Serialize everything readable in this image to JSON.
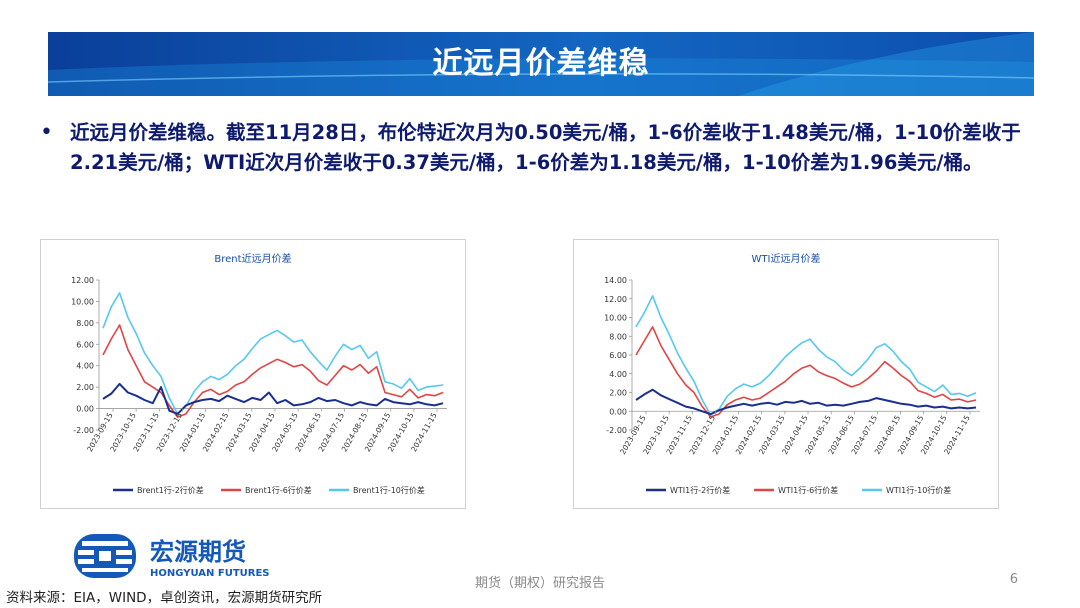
{
  "slide": {
    "title": "近远月价差维稳",
    "bullet": "近远月价差维稳。截至11月28日，布伦特近次月为0.50美元/桶，1-6价差收于1.48美元/桶，1-10价差收于2.21美元/桶；WTI近次月价差收于0.37美元/桶，1-6价差为1.18美元/桶，1-10价差为1.96美元/桶。",
    "footer_center": "期货（期权）研究报告",
    "page_number": "6",
    "source": "资料来源：EIA，WIND，卓创资讯，宏源期货研究所",
    "logo": {
      "cn": "宏源期货",
      "en": "HONGYUAN FUTURES"
    },
    "colors": {
      "banner_dark": "#0b4aa8",
      "banner_light": "#1c8fe0",
      "text_navy": "#0d1a6e"
    }
  },
  "chart_data": [
    {
      "type": "line",
      "title": "Brent近远月价差",
      "ylim": [
        -2,
        12
      ],
      "yticks": [
        "-2.00",
        "0.00",
        "2.00",
        "4.00",
        "6.00",
        "8.00",
        "10.00",
        "12.00"
      ],
      "xticks": [
        "2023-09-15",
        "2023-10-15",
        "2023-11-15",
        "2023-12-15",
        "2024-01-15",
        "2024-02-15",
        "2024-03-15",
        "2024-04-15",
        "2024-05-15",
        "2024-06-15",
        "2024-07-15",
        "2024-08-15",
        "2024-09-15",
        "2024-10-15",
        "2024-11-15"
      ],
      "series": [
        {
          "name": "Brent1行-2行价差",
          "color": "#1a2f8f",
          "values": [
            0.9,
            1.4,
            2.3,
            1.5,
            1.2,
            0.8,
            0.5,
            2.0,
            -0.2,
            -0.5,
            0.3,
            0.6,
            0.8,
            0.9,
            0.7,
            1.2,
            0.9,
            0.6,
            1.0,
            0.8,
            1.5,
            0.5,
            0.8,
            0.3,
            0.4,
            0.6,
            1.0,
            0.7,
            0.8,
            0.5,
            0.3,
            0.6,
            0.4,
            0.3,
            0.9,
            0.6,
            0.5,
            0.4,
            0.6,
            0.4,
            0.3,
            0.5
          ]
        },
        {
          "name": "Brent1行-6行价差",
          "color": "#e04545",
          "values": [
            5.0,
            6.5,
            7.8,
            5.5,
            4.0,
            2.5,
            2.0,
            1.5,
            0.3,
            -0.8,
            -0.5,
            0.6,
            1.5,
            1.8,
            1.3,
            1.6,
            2.2,
            2.5,
            3.2,
            3.8,
            4.2,
            4.6,
            4.3,
            3.9,
            4.1,
            3.5,
            2.6,
            2.2,
            3.1,
            4.0,
            3.6,
            4.1,
            3.3,
            3.9,
            1.5,
            1.3,
            1.1,
            1.8,
            1.0,
            1.3,
            1.2,
            1.5
          ]
        },
        {
          "name": "Brent1行-10行价差",
          "color": "#55c8f0",
          "values": [
            7.5,
            9.5,
            10.8,
            8.5,
            7.0,
            5.2,
            4.0,
            3.0,
            1.0,
            -0.5,
            0.2,
            1.6,
            2.5,
            3.0,
            2.7,
            3.2,
            4.0,
            4.6,
            5.6,
            6.5,
            6.9,
            7.3,
            6.8,
            6.2,
            6.4,
            5.3,
            4.4,
            3.6,
            4.9,
            6.0,
            5.5,
            5.9,
            4.7,
            5.3,
            2.5,
            2.3,
            1.9,
            2.8,
            1.7,
            2.0,
            2.1,
            2.2
          ]
        }
      ]
    },
    {
      "type": "line",
      "title": "WTI近远月价差",
      "ylim": [
        -2,
        14
      ],
      "yticks": [
        "-2.00",
        "0.00",
        "2.00",
        "4.00",
        "6.00",
        "8.00",
        "10.00",
        "12.00",
        "14.00"
      ],
      "xticks": [
        "2023-09-15",
        "2023-10-15",
        "2023-11-15",
        "2023-12-15",
        "2024-01-15",
        "2024-02-15",
        "2024-03-15",
        "2024-04-15",
        "2024-05-15",
        "2024-06-15",
        "2024-07-15",
        "2024-08-15",
        "2024-09-15",
        "2024-10-15",
        "2024-11-15"
      ],
      "series": [
        {
          "name": "WTI1行-2行价差",
          "color": "#1a2f8f",
          "values": [
            1.2,
            1.8,
            2.3,
            1.7,
            1.3,
            0.9,
            0.5,
            0.3,
            0.0,
            -0.3,
            0.1,
            0.4,
            0.6,
            0.8,
            0.6,
            0.8,
            0.9,
            0.7,
            1.0,
            0.9,
            1.1,
            0.8,
            0.9,
            0.6,
            0.7,
            0.6,
            0.8,
            1.0,
            1.1,
            1.4,
            1.2,
            1.0,
            0.8,
            0.7,
            0.5,
            0.6,
            0.4,
            0.5,
            0.3,
            0.4,
            0.3,
            0.4
          ]
        },
        {
          "name": "WTI1行-6行价差",
          "color": "#e04545",
          "values": [
            6.0,
            7.5,
            9.0,
            7.0,
            5.5,
            4.0,
            2.8,
            2.0,
            0.5,
            -0.6,
            -0.3,
            0.7,
            1.2,
            1.5,
            1.2,
            1.4,
            2.0,
            2.6,
            3.2,
            4.0,
            4.6,
            4.9,
            4.2,
            3.8,
            3.5,
            3.0,
            2.6,
            2.9,
            3.5,
            4.3,
            5.3,
            4.6,
            3.8,
            3.2,
            2.2,
            1.9,
            1.5,
            1.8,
            1.2,
            1.3,
            1.0,
            1.2
          ]
        },
        {
          "name": "WTI1行-10行价差",
          "color": "#55c8f0",
          "values": [
            9.0,
            10.5,
            12.3,
            10.0,
            8.2,
            6.2,
            4.6,
            3.2,
            1.2,
            -0.4,
            0.2,
            1.6,
            2.4,
            2.9,
            2.6,
            3.0,
            3.8,
            4.8,
            5.8,
            6.6,
            7.3,
            7.7,
            6.6,
            5.8,
            5.3,
            4.4,
            3.8,
            4.6,
            5.6,
            6.8,
            7.2,
            6.4,
            5.3,
            4.5,
            3.1,
            2.6,
            2.1,
            2.8,
            1.8,
            1.9,
            1.6,
            1.96
          ]
        }
      ]
    }
  ]
}
